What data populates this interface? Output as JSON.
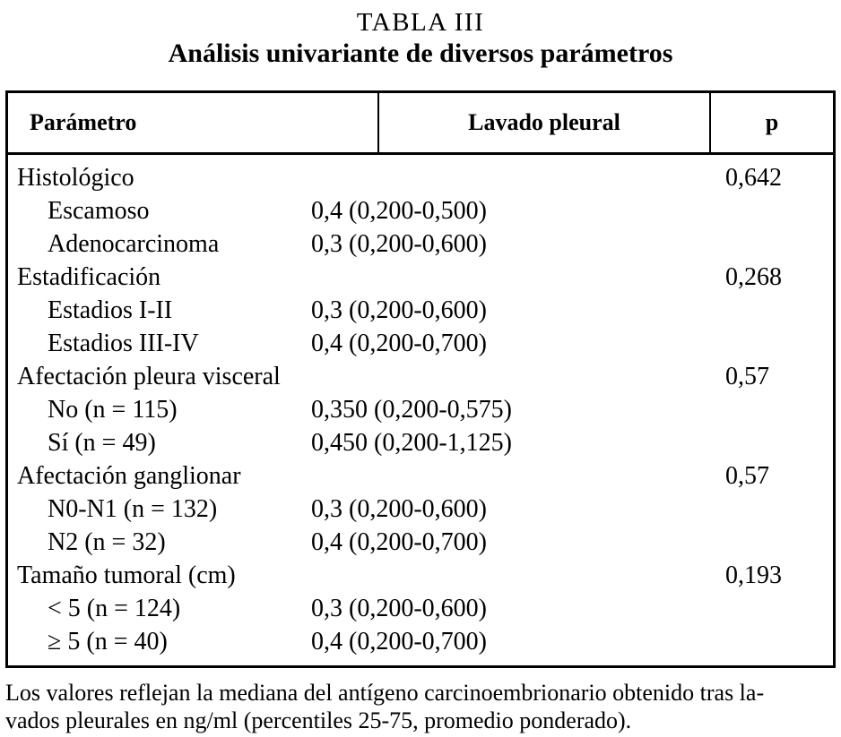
{
  "title": {
    "line1": "TABLA III",
    "line2": "Análisis univariante de diversos parámetros"
  },
  "table": {
    "headers": [
      "Parámetro",
      "Lavado pleural",
      "p"
    ],
    "rows": [
      {
        "label": "Histológico",
        "indent": false,
        "value": "",
        "p": "0,642"
      },
      {
        "label": "Escamoso",
        "indent": true,
        "value": "0,4 (0,200-0,500)",
        "p": ""
      },
      {
        "label": "Adenocarcinoma",
        "indent": true,
        "value": "0,3 (0,200-0,600)",
        "p": ""
      },
      {
        "label": "Estadificación",
        "indent": false,
        "value": "",
        "p": "0,268"
      },
      {
        "label": "Estadios I-II",
        "indent": true,
        "value": "0,3 (0,200-0,600)",
        "p": ""
      },
      {
        "label": "Estadios III-IV",
        "indent": true,
        "value": "0,4 (0,200-0,700)",
        "p": ""
      },
      {
        "label": "Afectación pleura visceral",
        "indent": false,
        "value": "",
        "p": "0,57"
      },
      {
        "label": "No (n = 115)",
        "indent": true,
        "value": "0,350 (0,200-0,575)",
        "p": ""
      },
      {
        "label": "Sí (n = 49)",
        "indent": true,
        "value": "0,450 (0,200-1,125)",
        "p": ""
      },
      {
        "label": "Afectación ganglionar",
        "indent": false,
        "value": "",
        "p": "0,57"
      },
      {
        "label": "N0-N1 (n = 132)",
        "indent": true,
        "value": "0,3 (0,200-0,600)",
        "p": ""
      },
      {
        "label": "N2 (n = 32)",
        "indent": true,
        "value": "0,4 (0,200-0,700)",
        "p": ""
      },
      {
        "label": "Tamaño tumoral (cm)",
        "indent": false,
        "value": "",
        "p": "0,193"
      },
      {
        "label": "< 5 (n = 124)",
        "indent": true,
        "value": "0,3 (0,200-0,600)",
        "p": ""
      },
      {
        "label": "≥ 5 (n = 40)",
        "indent": true,
        "value": "0,4 (0,200-0,700)",
        "p": ""
      }
    ]
  },
  "footnote": {
    "line1": "Los valores reflejan la mediana del antígeno carcinoembrionario obtenido tras la-",
    "line2": "vados pleurales en ng/ml (percentiles 25-75, promedio ponderado)."
  }
}
